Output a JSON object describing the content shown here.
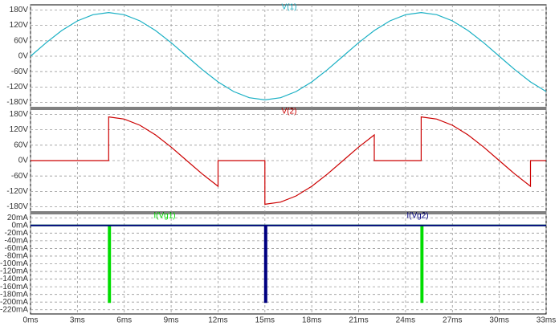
{
  "chart_data": [
    {
      "type": "line",
      "ylim": [
        -200,
        200
      ],
      "grid": true,
      "yticks": [
        {
          "value": 180,
          "label": "180V"
        },
        {
          "value": 120,
          "label": "120V"
        },
        {
          "value": 60,
          "label": "60V"
        },
        {
          "value": 0,
          "label": "0V"
        },
        {
          "value": -60,
          "label": "-60V"
        },
        {
          "value": -120,
          "label": "-120V"
        },
        {
          "value": -180,
          "label": "-180V"
        }
      ],
      "series": [
        {
          "name": "V(1)",
          "color": "#1ab0c4",
          "x": [
            0,
            1,
            2,
            3,
            4,
            5,
            6,
            7,
            8,
            9,
            10,
            11,
            12,
            13,
            14,
            15,
            16,
            17,
            18,
            19,
            20,
            21,
            22,
            23,
            24,
            25,
            26,
            27,
            28,
            29,
            30,
            31,
            32,
            33
          ],
          "values": [
            0,
            52.5,
            100,
            137.5,
            161.7,
            170,
            161.7,
            137.5,
            100,
            52.5,
            0,
            -52.5,
            -100,
            -137.5,
            -161.7,
            -170,
            -161.7,
            -137.5,
            -100,
            -52.5,
            0,
            52.5,
            100,
            137.5,
            161.7,
            170,
            161.7,
            137.5,
            100,
            52.5,
            0,
            -52.5,
            -100,
            -137.5
          ]
        }
      ]
    },
    {
      "type": "line",
      "ylim": [
        -200,
        200
      ],
      "grid": true,
      "yticks": [
        {
          "value": 180,
          "label": "180V"
        },
        {
          "value": 120,
          "label": "120V"
        },
        {
          "value": 60,
          "label": "60V"
        },
        {
          "value": 0,
          "label": "0V"
        },
        {
          "value": -60,
          "label": "-60V"
        },
        {
          "value": -120,
          "label": "-120V"
        },
        {
          "value": -180,
          "label": "-180V"
        }
      ],
      "series": [
        {
          "name": "V(2)",
          "color": "#cc0000",
          "x": [
            0,
            5,
            5,
            6,
            7,
            8,
            9,
            10,
            11,
            12,
            12,
            15,
            15,
            16,
            17,
            18,
            19,
            20,
            21,
            22,
            22,
            25,
            25,
            26,
            27,
            28,
            29,
            30,
            31,
            32,
            32,
            33
          ],
          "values": [
            0,
            0,
            170,
            161.7,
            137.5,
            100,
            52.5,
            0,
            -52.5,
            -100,
            0,
            0,
            -170,
            -161.7,
            -137.5,
            -100,
            -52.5,
            0,
            52.5,
            100,
            0,
            0,
            170,
            161.7,
            137.5,
            100,
            52.5,
            0,
            -52.5,
            -100,
            0,
            0
          ]
        }
      ]
    },
    {
      "type": "line",
      "ylim": [
        -231,
        31
      ],
      "grid": true,
      "xlim": [
        0,
        33
      ],
      "xticks": [
        {
          "value": 0,
          "label": "0ms"
        },
        {
          "value": 3,
          "label": "3ms"
        },
        {
          "value": 6,
          "label": "6ms"
        },
        {
          "value": 9,
          "label": "9ms"
        },
        {
          "value": 12,
          "label": "12ms"
        },
        {
          "value": 15,
          "label": "15ms"
        },
        {
          "value": 18,
          "label": "18ms"
        },
        {
          "value": 21,
          "label": "21ms"
        },
        {
          "value": 24,
          "label": "24ms"
        },
        {
          "value": 27,
          "label": "27ms"
        },
        {
          "value": 30,
          "label": "30ms"
        },
        {
          "value": 33,
          "label": "33ms"
        }
      ],
      "yticks": [
        {
          "value": 20,
          "label": "20mA"
        },
        {
          "value": 0,
          "label": "0mA"
        },
        {
          "value": -20,
          "label": "-20mA"
        },
        {
          "value": -40,
          "label": "-40mA"
        },
        {
          "value": -60,
          "label": "-60mA"
        },
        {
          "value": -80,
          "label": "-80mA"
        },
        {
          "value": -100,
          "label": "-100mA"
        },
        {
          "value": -120,
          "label": "-120mA"
        },
        {
          "value": -140,
          "label": "-140mA"
        },
        {
          "value": -160,
          "label": "-160mA"
        },
        {
          "value": -180,
          "label": "-180mA"
        },
        {
          "value": -200,
          "label": "-200mA"
        },
        {
          "value": -220,
          "label": "-220mA"
        }
      ],
      "series": [
        {
          "name": "I(Vg1)",
          "color": "#00dd00",
          "x": [
            0,
            5,
            5,
            5.1,
            5.1,
            25,
            25,
            25.1,
            25.1,
            33
          ],
          "values": [
            0,
            0,
            -200,
            -200,
            0,
            0,
            -200,
            -200,
            0,
            0
          ]
        },
        {
          "name": "I(Vg2)",
          "color": "#000080",
          "x": [
            0,
            15,
            15,
            15.1,
            15.1,
            33
          ],
          "values": [
            0,
            0,
            -200,
            -200,
            0,
            0
          ]
        }
      ]
    }
  ]
}
